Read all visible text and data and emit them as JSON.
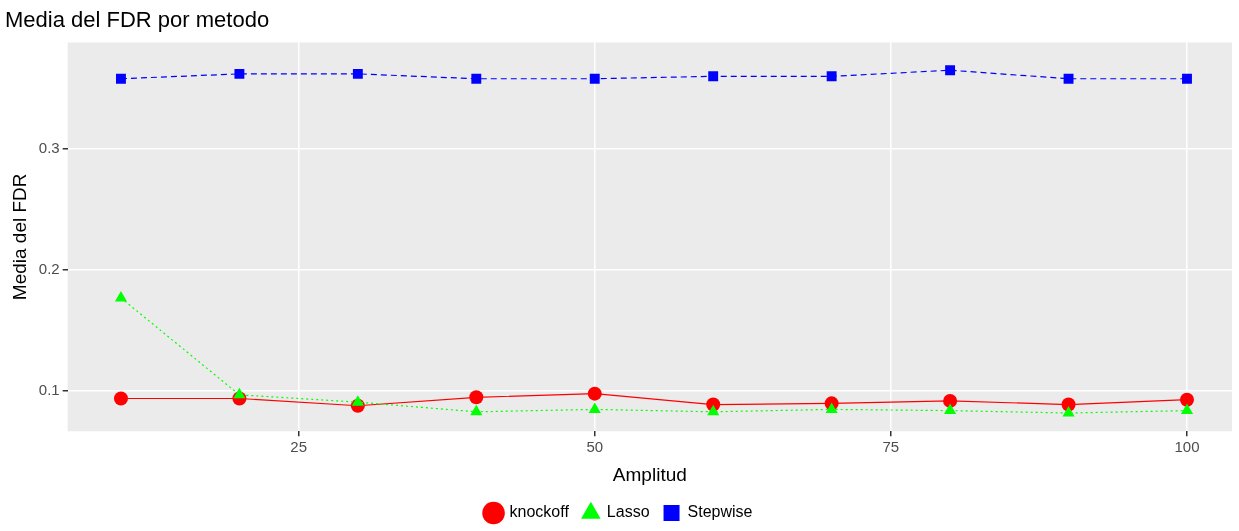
{
  "chart_data": {
    "type": "line",
    "title": "Media del FDR por metodo",
    "xlabel": "Amplitud",
    "ylabel": "Media del FDR",
    "x": [
      10,
      20,
      30,
      40,
      50,
      60,
      70,
      80,
      90,
      100
    ],
    "series": [
      {
        "name": "knockoff",
        "color": "#ff0000",
        "marker": "circle",
        "line_style": "solid",
        "values": [
          0.094,
          0.094,
          0.088,
          0.095,
          0.098,
          0.089,
          0.09,
          0.092,
          0.089,
          0.093
        ]
      },
      {
        "name": "Lasso",
        "color": "#00ff00",
        "marker": "triangle",
        "line_style": "dotted",
        "values": [
          0.177,
          0.097,
          0.091,
          0.083,
          0.085,
          0.083,
          0.085,
          0.084,
          0.082,
          0.084
        ]
      },
      {
        "name": "Stepwise",
        "color": "#0000ff",
        "marker": "square",
        "line_style": "dashed",
        "values": [
          0.358,
          0.362,
          0.362,
          0.358,
          0.358,
          0.36,
          0.36,
          0.365,
          0.358,
          0.358
        ]
      }
    ],
    "xlim": [
      5.5,
      103.8
    ],
    "xticks": [
      25,
      50,
      75,
      100
    ],
    "ylim": [
      0.067,
      0.388
    ],
    "yticks": [
      0.1,
      0.2,
      0.3
    ],
    "grid": true,
    "legend": "bottom"
  }
}
